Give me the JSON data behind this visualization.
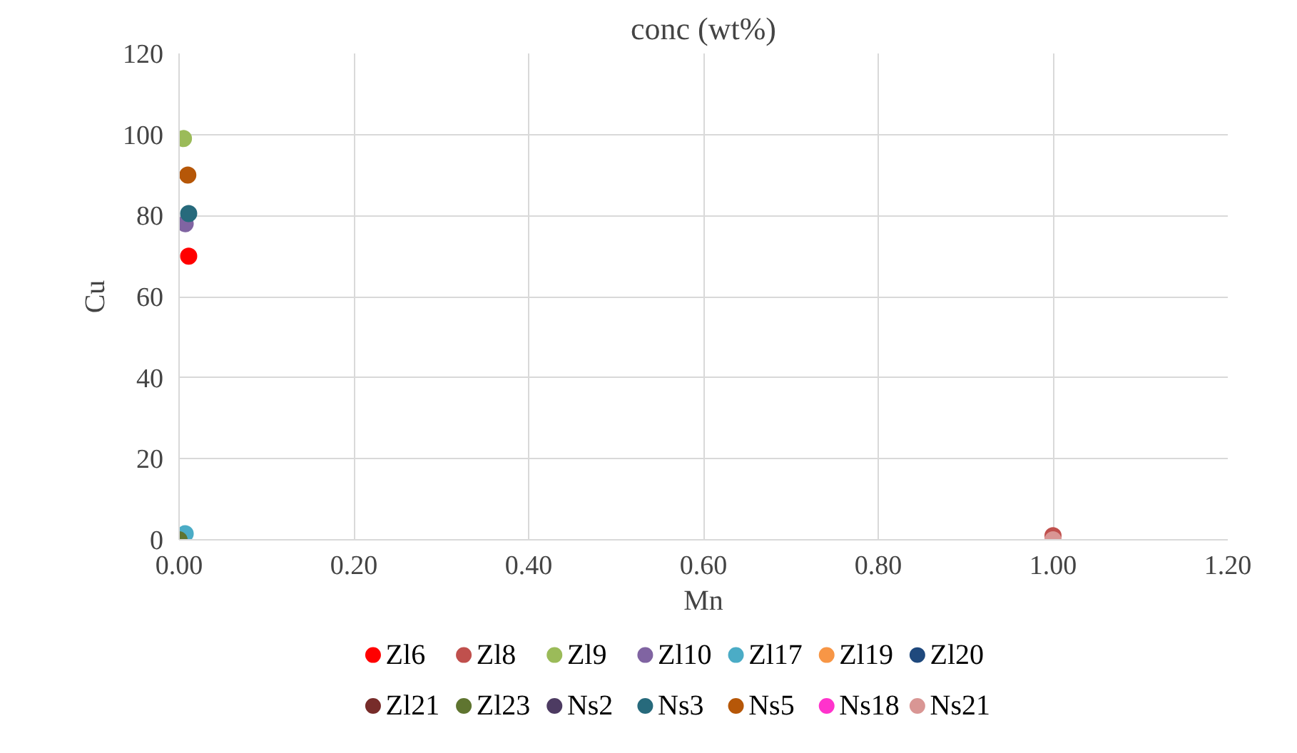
{
  "chart_data": {
    "type": "scatter",
    "title": "conc (wt%)",
    "xlabel": "Mn",
    "ylabel": "Cu",
    "xlim": [
      0,
      1.2
    ],
    "xticks": [
      {
        "value": 0,
        "label": "0.00"
      },
      {
        "value": 0.2,
        "label": "0.20"
      },
      {
        "value": 0.4,
        "label": "0.40"
      },
      {
        "value": 0.6,
        "label": "0.60"
      },
      {
        "value": 0.8,
        "label": "0.80"
      },
      {
        "value": 1,
        "label": "1.00"
      },
      {
        "value": 1.2,
        "label": "1.20"
      }
    ],
    "ylim": [
      0,
      120
    ],
    "yticks": [
      0,
      20,
      40,
      60,
      80,
      100,
      120
    ],
    "grid": true,
    "legend": "bottom",
    "marker": "circle",
    "series": [
      {
        "name": "Zl6",
        "color": "#ff0000",
        "x": [
          0.011
        ],
        "values": [
          70
        ]
      },
      {
        "name": "Zl8",
        "color": "#c0504d",
        "x": [
          1.0
        ],
        "values": [
          1
        ]
      },
      {
        "name": "Zl9",
        "color": "#9bbb59",
        "x": [
          0.005
        ],
        "values": [
          99
        ]
      },
      {
        "name": "Zl10",
        "color": "#8064a2",
        "x": [
          0.007
        ],
        "values": [
          78
        ]
      },
      {
        "name": "Zl17",
        "color": "#4bacc6",
        "x": [
          0.007
        ],
        "values": [
          1.5
        ]
      },
      {
        "name": "Zl19",
        "color": "#f79646",
        "x": [
          null
        ],
        "values": [
          null
        ]
      },
      {
        "name": "Zl20",
        "color": "#1f497d",
        "x": [
          null
        ],
        "values": [
          null
        ]
      },
      {
        "name": "Zl21",
        "color": "#772c2a",
        "x": [
          null
        ],
        "values": [
          null
        ]
      },
      {
        "name": "Zl23",
        "color": "#5f7530",
        "x": [
          0
        ],
        "values": [
          0
        ]
      },
      {
        "name": "Ns2",
        "color": "#4d3b62",
        "x": [
          null
        ],
        "values": [
          null
        ]
      },
      {
        "name": "Ns3",
        "color": "#276a7c",
        "x": [
          0.011
        ],
        "values": [
          80.5
        ]
      },
      {
        "name": "Ns5",
        "color": "#b65708",
        "x": [
          0.01
        ],
        "values": [
          90
        ]
      },
      {
        "name": "Ns18",
        "color": "#ff33cc",
        "x": [
          null
        ],
        "values": [
          null
        ]
      },
      {
        "name": "Ns21",
        "color": "#d99694",
        "x": [
          1.0
        ],
        "values": [
          0
        ]
      }
    ]
  }
}
